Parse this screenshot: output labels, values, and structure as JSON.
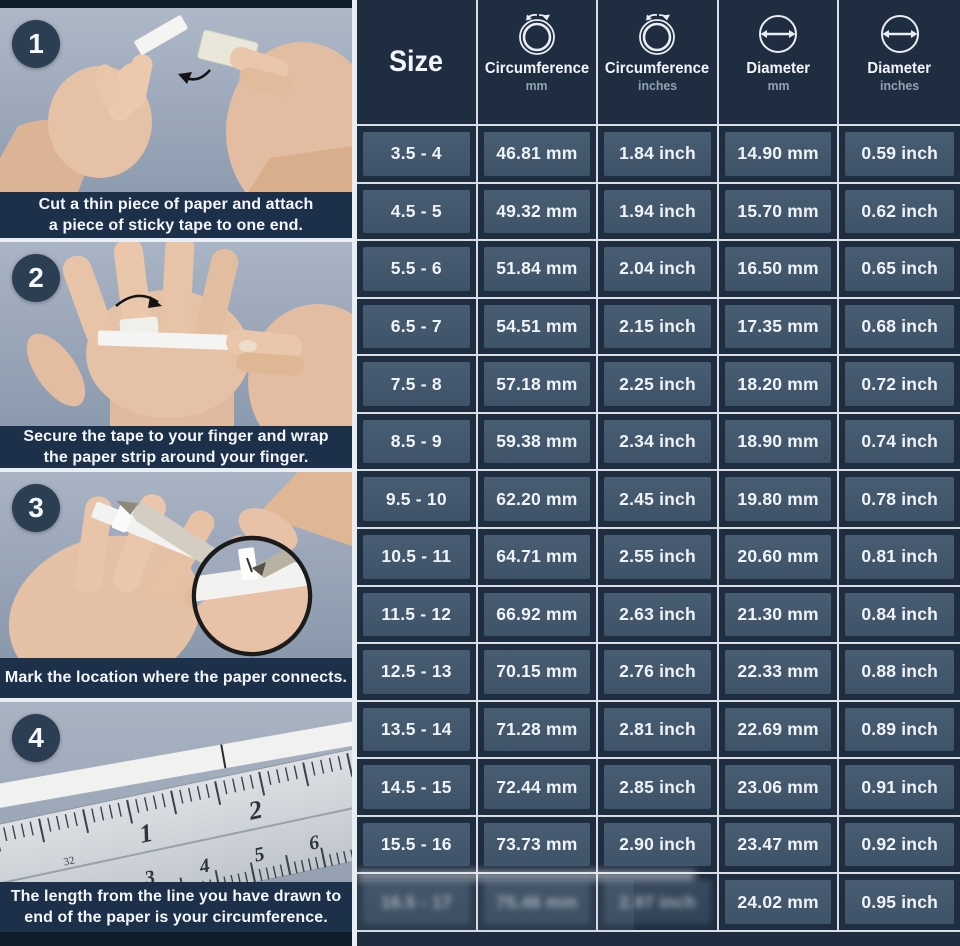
{
  "steps": [
    {
      "number": "1",
      "caption_line1": "Cut a thin piece of paper and attach",
      "caption_line2": "a piece of sticky tape to one end."
    },
    {
      "number": "2",
      "caption_line1": "Secure the tape to your finger and wrap",
      "caption_line2": "the paper strip around your finger."
    },
    {
      "number": "3",
      "caption_line1": "Mark the location where the paper connects.",
      "caption_line2": ""
    },
    {
      "number": "4",
      "caption_line1": "The length from the line you have drawn to",
      "caption_line2_prefix": "end of the paper is your ",
      "caption_line2_bold": "circumference."
    }
  ],
  "table": {
    "columns": [
      {
        "label": "Size",
        "sub": "",
        "icon": ""
      },
      {
        "label": "Circumference",
        "sub": "mm",
        "icon": "circumference-icon"
      },
      {
        "label": "Circumference",
        "sub": "inches",
        "icon": "circumference-icon"
      },
      {
        "label": "Diameter",
        "sub": "mm",
        "icon": "diameter-icon"
      },
      {
        "label": "Diameter",
        "sub": "inches",
        "icon": "diameter-icon"
      }
    ],
    "rows": [
      [
        "3.5 - 4",
        "46.81 mm",
        "1.84 inch",
        "14.90 mm",
        "0.59 inch"
      ],
      [
        "4.5 - 5",
        "49.32 mm",
        "1.94 inch",
        "15.70 mm",
        "0.62 inch"
      ],
      [
        "5.5 - 6",
        "51.84 mm",
        "2.04 inch",
        "16.50 mm",
        "0.65 inch"
      ],
      [
        "6.5 - 7",
        "54.51 mm",
        "2.15 inch",
        "17.35 mm",
        "0.68 inch"
      ],
      [
        "7.5 - 8",
        "57.18 mm",
        "2.25 inch",
        "18.20 mm",
        "0.72 inch"
      ],
      [
        "8.5 - 9",
        "59.38 mm",
        "2.34 inch",
        "18.90 mm",
        "0.74 inch"
      ],
      [
        "9.5 - 10",
        "62.20 mm",
        "2.45 inch",
        "19.80 mm",
        "0.78 inch"
      ],
      [
        "10.5 - 11",
        "64.71 mm",
        "2.55 inch",
        "20.60 mm",
        "0.81 inch"
      ],
      [
        "11.5 - 12",
        "66.92 mm",
        "2.63 inch",
        "21.30 mm",
        "0.84 inch"
      ],
      [
        "12.5 - 13",
        "70.15 mm",
        "2.76 inch",
        "22.33 mm",
        "0.88 inch"
      ],
      [
        "13.5 - 14",
        "71.28 mm",
        "2.81 inch",
        "22.69 mm",
        "0.89 inch"
      ],
      [
        "14.5 - 15",
        "72.44 mm",
        "2.85 inch",
        "23.06 mm",
        "0.91 inch"
      ],
      [
        "15.5 - 16",
        "73.73 mm",
        "2.90 inch",
        "23.47 mm",
        "0.92 inch"
      ],
      [
        "16.5 - 17",
        "75.46 mm",
        "2.97 inch",
        "24.02 mm",
        "0.95 inch"
      ]
    ],
    "last_row_blurred_columns": [
      0,
      1,
      2
    ]
  },
  "colors": {
    "background_dark": "#1e2d3f",
    "table_cell": "#43586d",
    "grid_line": "#e9eef2",
    "caption_bar": "#1c3049",
    "badge_circle": "#2c3e52",
    "text": "#f3f6f9",
    "subheader_text": "#90a3b2"
  }
}
